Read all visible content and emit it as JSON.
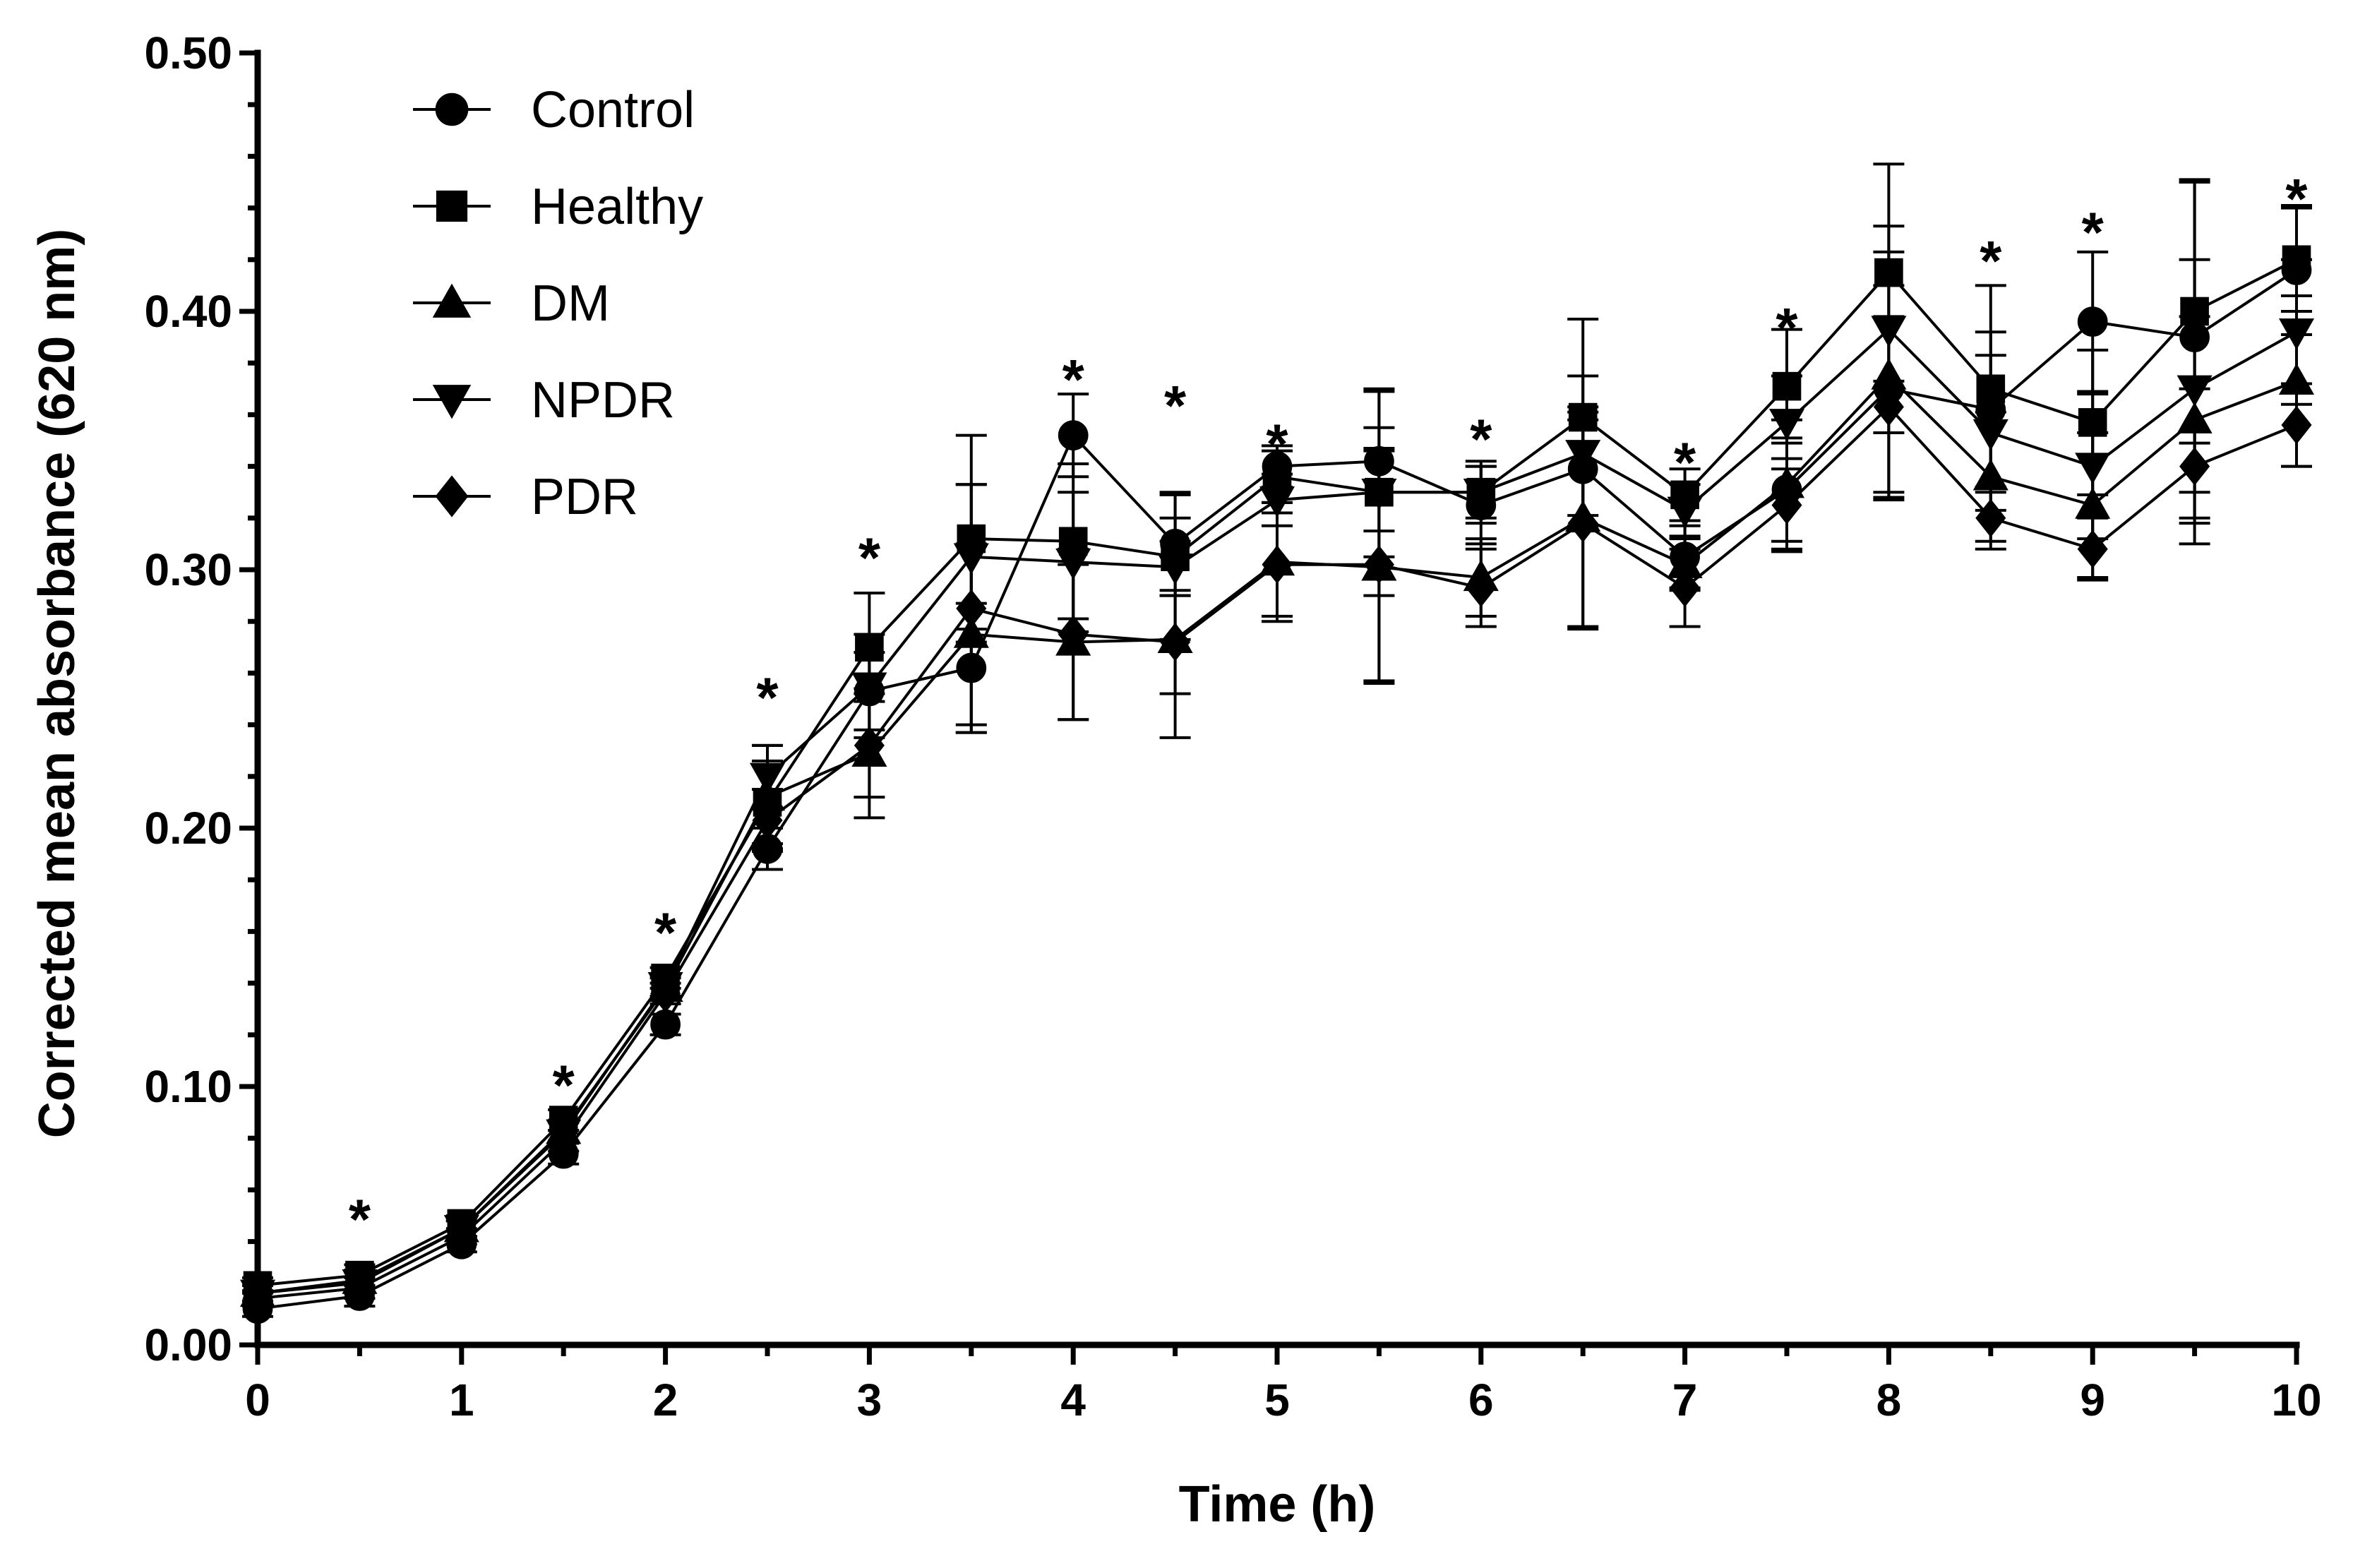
{
  "chart_data": {
    "type": "line",
    "title": "",
    "xlabel": "Time (h)",
    "ylabel": "Corrected mean absorbance (620 nm)",
    "xlim": [
      0,
      10
    ],
    "ylim": [
      0,
      0.5
    ],
    "x_ticks": [
      "0",
      "1",
      "2",
      "3",
      "4",
      "5",
      "6",
      "7",
      "8",
      "9",
      "10"
    ],
    "y_ticks": [
      "0.00",
      "0.10",
      "0.20",
      "0.30",
      "0.40",
      "0.50"
    ],
    "legend_position": "top-left",
    "x": [
      0,
      0.5,
      1,
      1.5,
      2,
      2.5,
      3,
      3.5,
      4,
      4.5,
      5,
      5.5,
      6,
      6.5,
      7,
      7.5,
      8,
      8.5,
      9,
      9.5,
      10
    ],
    "series": [
      {
        "name": "Control",
        "marker": "circle",
        "values": [
          0.014,
          0.019,
          0.039,
          0.074,
          0.124,
          0.192,
          0.253,
          0.262,
          0.352,
          0.31,
          0.34,
          0.342,
          0.325,
          0.339,
          0.305,
          0.331,
          0.37,
          0.362,
          0.396,
          0.39,
          0.416
        ],
        "errors": [
          0.003,
          0.004,
          0.003,
          0.004,
          0.004,
          0.008,
          0.015,
          0.025,
          0.016,
          0.02,
          0.008,
          0.027,
          0.015,
          0.022,
          0.012,
          0.02,
          0.04,
          0.03,
          0.027,
          0.06,
          0.025
        ]
      },
      {
        "name": "Healthy",
        "marker": "square",
        "values": [
          0.023,
          0.027,
          0.047,
          0.087,
          0.142,
          0.21,
          0.27,
          0.312,
          0.311,
          0.305,
          0.336,
          0.33,
          0.33,
          0.359,
          0.329,
          0.371,
          0.415,
          0.37,
          0.357,
          0.4,
          0.42
        ],
        "errors": [
          0.003,
          0.004,
          0.003,
          0.004,
          0.004,
          0.016,
          0.021,
          0.04,
          0.03,
          0.015,
          0.01,
          0.04,
          0.012,
          0.038,
          0.01,
          0.022,
          0.042,
          0.04,
          0.028,
          0.051,
          0.02
        ]
      },
      {
        "name": "DM",
        "marker": "triangle-up",
        "values": [
          0.02,
          0.025,
          0.045,
          0.083,
          0.138,
          0.212,
          0.229,
          0.275,
          0.272,
          0.273,
          0.303,
          0.301,
          0.297,
          0.32,
          0.302,
          0.333,
          0.375,
          0.336,
          0.325,
          0.358,
          0.373
        ],
        "errors": [
          0.003,
          0.004,
          0.003,
          0.004,
          0.004,
          0.02,
          0.025,
          0.035,
          0.03,
          0.038,
          0.023,
          0.045,
          0.015,
          0.043,
          0.01,
          0.025,
          0.048,
          0.025,
          0.028,
          0.04,
          0.033
        ]
      },
      {
        "name": "NPDR",
        "marker": "triangle-down",
        "values": [
          0.02,
          0.024,
          0.045,
          0.082,
          0.139,
          0.22,
          0.255,
          0.305,
          0.303,
          0.301,
          0.327,
          0.33,
          0.33,
          0.345,
          0.323,
          0.357,
          0.393,
          0.353,
          0.34,
          0.37,
          0.392
        ],
        "errors": [
          0.003,
          0.004,
          0.003,
          0.004,
          0.004,
          0.012,
          0.02,
          0.028,
          0.027,
          0.028,
          0.01,
          0.025,
          0.01,
          0.03,
          0.01,
          0.018,
          0.04,
          0.03,
          0.028,
          0.05,
          0.028
        ]
      },
      {
        "name": "PDR",
        "marker": "diamond",
        "values": [
          0.018,
          0.022,
          0.042,
          0.079,
          0.136,
          0.203,
          0.232,
          0.285,
          0.275,
          0.272,
          0.302,
          0.302,
          0.293,
          0.318,
          0.293,
          0.325,
          0.363,
          0.32,
          0.308,
          0.34,
          0.356
        ],
        "errors": [
          0.003,
          0.004,
          0.003,
          0.004,
          0.004,
          0.012,
          0.02,
          0.048,
          0.033,
          0.02,
          0.02,
          0.045,
          0.015,
          0.04,
          0.015,
          0.018,
          0.035,
          0.012,
          0.012,
          0.03,
          0.016
        ]
      }
    ],
    "significance": {
      "symbol": "*",
      "x": [
        0.5,
        1.5,
        2,
        2.5,
        3,
        4,
        4.5,
        5,
        6,
        7,
        7.5,
        8.5,
        9,
        10
      ],
      "y": [
        0.052,
        0.104,
        0.163,
        0.254,
        0.308,
        0.377,
        0.367,
        0.352,
        0.354,
        0.345,
        0.397,
        0.423,
        0.434,
        0.447
      ]
    }
  }
}
